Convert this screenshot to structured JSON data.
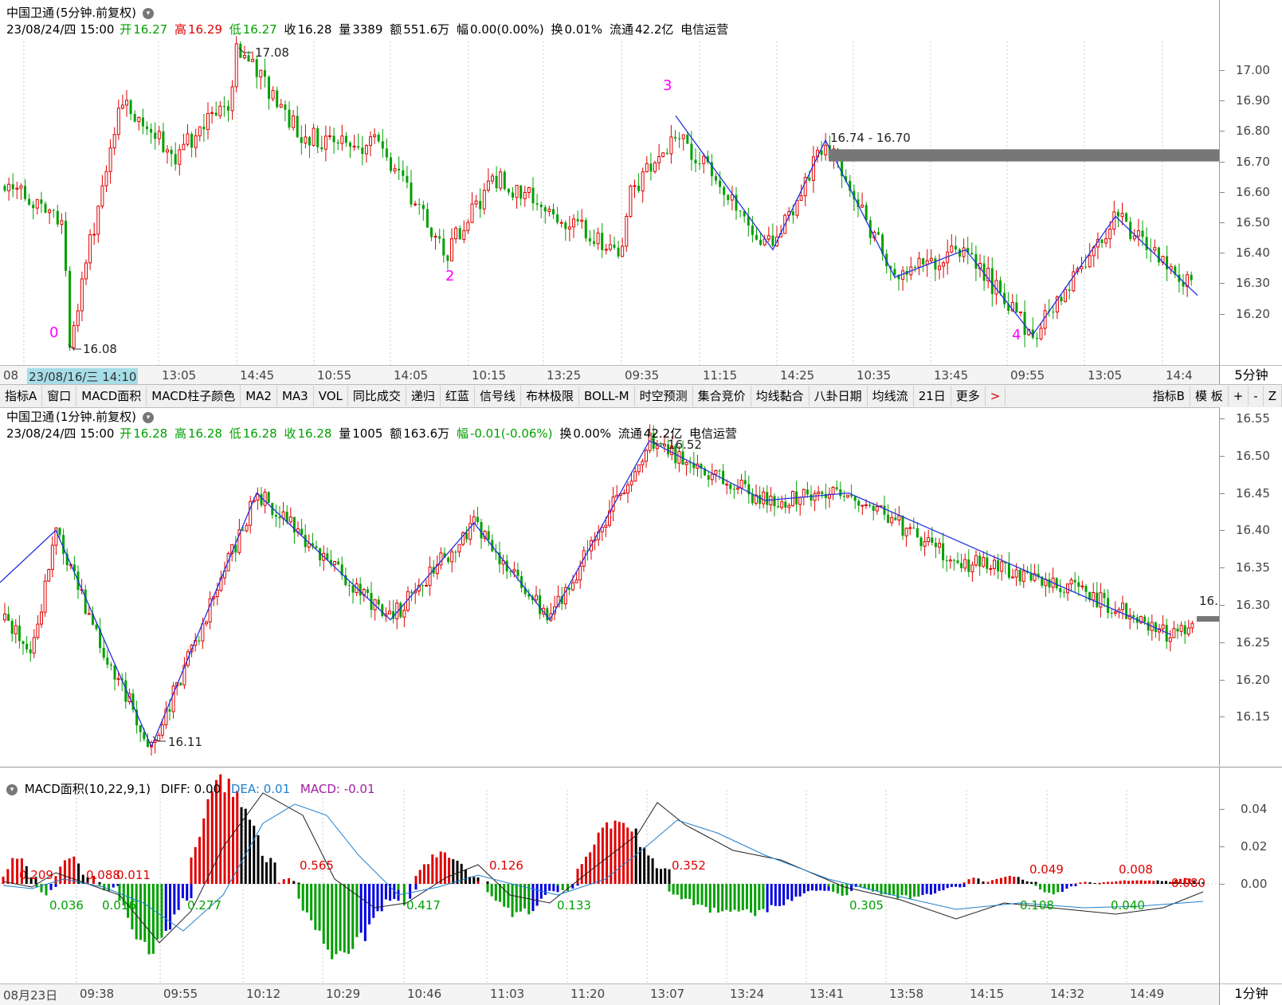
{
  "top_panel": {
    "title": "中国卫通",
    "period_label": "(5分钟.前复权)",
    "info": {
      "datetime": "23/08/24/四 15:00",
      "open_label": "开",
      "open": "16.27",
      "high_label": "高",
      "high": "16.29",
      "low_label": "低",
      "low": "16.27",
      "close_label": "收",
      "close": "16.28",
      "vol_label": "量",
      "vol": "3389",
      "amt_label": "额",
      "amt": "551.6万",
      "chg_label": "幅",
      "chg": "0.00(0.00%)",
      "turnover_label": "换",
      "turnover": "0.01%",
      "float_label": "流通",
      "float": "42.2亿",
      "industry": "电信运营"
    },
    "y_ticks": [
      "17.00",
      "16.90",
      "16.80",
      "16.70",
      "16.60",
      "16.50",
      "16.40",
      "16.30",
      "16.20"
    ],
    "time_ticks": [
      "08",
      "23/08/16/三 14:10",
      "13:05",
      "14:45",
      "10:55",
      "14:05",
      "10:15",
      "13:25",
      "09:35",
      "11:15",
      "14:25",
      "10:35",
      "13:45",
      "09:55",
      "13:05",
      "14:4"
    ],
    "period_button": "5分钟",
    "annotations": {
      "high_label": "17.08",
      "low_label": "16.08",
      "range_label": "16.74 - 16.70",
      "wave_0": "0",
      "wave_2": "2",
      "wave_3": "3",
      "wave_4": "4"
    }
  },
  "toolbar": {
    "buttons": [
      "指标A",
      "窗口",
      "MACD面积",
      "MACD柱子颜色",
      "MA2",
      "MA3",
      "VOL",
      "同比成交",
      "递归",
      "红蓝",
      "信号线",
      "布林极限",
      "BOLL-M",
      "时空预测",
      "集合竞价",
      "均线黏合",
      "八卦日期",
      "均线流",
      "21日",
      "更多"
    ],
    "arrow": ">",
    "right_buttons": [
      "指标B",
      "模 板",
      "+",
      "-",
      "Z"
    ]
  },
  "mid_panel": {
    "title": "中国卫通",
    "period_label": "(1分钟.前复权)",
    "info": {
      "datetime": "23/08/24/四 15:00",
      "open_label": "开",
      "open": "16.28",
      "high_label": "高",
      "high": "16.28",
      "low_label": "低",
      "low": "16.28",
      "close_label": "收",
      "close": "16.28",
      "vol_label": "量",
      "vol": "1005",
      "amt_label": "额",
      "amt": "163.6万",
      "chg_label": "幅",
      "chg": "-0.01(-0.06%)",
      "turnover_label": "换",
      "turnover": "0.00%",
      "float_label": "流通",
      "float": "42.2亿",
      "industry": "电信运营"
    },
    "y_ticks": [
      "16.55",
      "16.50",
      "16.45",
      "16.40",
      "16.35",
      "16.30",
      "16.25",
      "16.20",
      "16.15"
    ],
    "annotations": {
      "high_label": "16.52",
      "low_label": "16.11",
      "last_label": "16."
    }
  },
  "macd_panel": {
    "title": "MACD面积(10,22,9,1)",
    "diff_label": "DIFF: 0.00",
    "dea_label": "DEA: 0.01",
    "macd_label": "MACD: -0.01",
    "y_ticks": [
      "0.04",
      "0.02",
      "0.00"
    ],
    "area_labels_red": [
      "0.209",
      "0.088",
      "0.011",
      "0.565",
      "0.126",
      "0.352",
      "0.049",
      "0.008",
      "0.080"
    ],
    "area_labels_green": [
      "0.036",
      "0.016",
      "0.277",
      "0.417",
      "0.133",
      "0.305",
      "0.108",
      "0.040"
    ],
    "time_ticks": [
      "08月23日",
      "09:38",
      "09:55",
      "10:12",
      "10:29",
      "10:46",
      "11:03",
      "11:20",
      "13:07",
      "13:24",
      "13:41",
      "13:58",
      "14:15",
      "14:32",
      "14:49"
    ],
    "period_button": "1分钟"
  },
  "colors": {
    "up": "#e00000",
    "down": "#00a000",
    "macd_neg_alt": "#0000e0",
    "macd_pos_alt": "#000000",
    "wave_line": "#2233dd",
    "dea_line": "#1f7fd0",
    "wave_label": "#ff00ff",
    "range_bar": "#777777"
  },
  "chart_data": [
    {
      "type": "candlestick",
      "title": "中国卫通 (5分钟.前复权)",
      "ylim": [
        16.08,
        17.08
      ],
      "wave_points": [
        {
          "label": "0",
          "value": 16.08
        },
        {
          "label": "",
          "value": 17.08
        },
        {
          "label": "2",
          "value": 16.38
        },
        {
          "label": "3",
          "value": 16.85
        },
        {
          "label": "",
          "value": 16.41
        },
        {
          "label": "",
          "value": 16.77
        },
        {
          "label": "",
          "value": 16.32
        },
        {
          "label": "",
          "value": 16.41
        },
        {
          "label": "4",
          "value": 16.13
        },
        {
          "label": "",
          "value": 16.52
        },
        {
          "label": "",
          "value": 16.26
        }
      ],
      "range_box": [
        16.7,
        16.74
      ]
    },
    {
      "type": "candlestick",
      "title": "中国卫通 (1分钟.前复权)",
      "ylim": [
        16.11,
        16.52
      ],
      "wave_points": [
        16.33,
        16.4,
        16.11,
        16.45,
        16.28,
        16.41,
        16.28,
        16.52,
        16.44,
        16.45,
        16.26
      ]
    },
    {
      "type": "bar",
      "title": "MACD面积(10,22,9,1)",
      "ylim": [
        -0.04,
        0.055
      ],
      "series": [
        {
          "name": "DIFF",
          "value": 0.0
        },
        {
          "name": "DEA",
          "value": 0.01
        },
        {
          "name": "MACD",
          "value": -0.01
        }
      ]
    }
  ]
}
